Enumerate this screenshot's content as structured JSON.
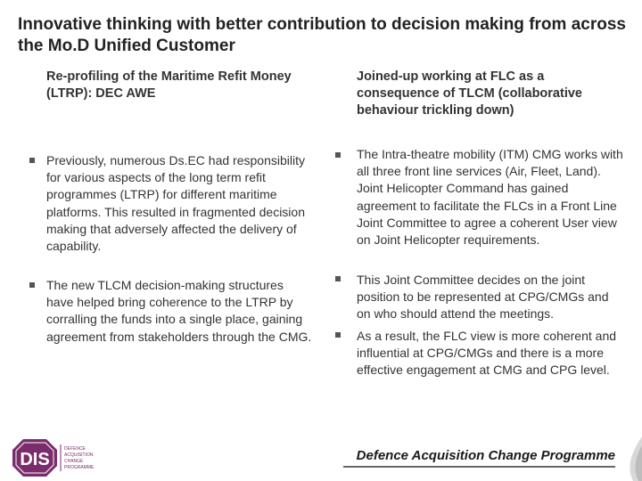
{
  "title": "Innovative thinking with better contribution to decision making from across the Mo.D Unified Customer",
  "left": {
    "heading": "Re-profiling of the Maritime Refit Money (LTRP): DEC AWE",
    "bullets": [
      "Previously, numerous Ds.EC had responsibility for various aspects of the long term refit programmes (LTRP) for different maritime platforms. This resulted in fragmented decision making that adversely affected the delivery of capability.",
      "The new TLCM decision-making structures have helped bring coherence to the LTRP by corralling the funds into a single place, gaining agreement from stakeholders through the CMG."
    ]
  },
  "right": {
    "heading": "Joined-up working at FLC as a consequence of TLCM (collaborative behaviour trickling down)",
    "bullets": [
      "The Intra-theatre mobility (ITM) CMG works with all three front line services (Air, Fleet, Land). Joint Helicopter Command has gained agreement to facilitate the FLCs in a Front Line Joint Committee to agree a coherent User view on Joint Helicopter requirements.",
      "This Joint Committee decides on the joint position to be represented at CPG/CMGs and on who should attend the meetings.",
      "As a result, the FLC view is more coherent and influential at CPG/CMGs and there is a more effective engagement at CMG and CPG level."
    ]
  },
  "footer": {
    "programme": "Defence Acquisition Change Programme"
  },
  "logo": {
    "text": "DIS",
    "tagline": [
      "DEFENCE",
      "ACQUISITION",
      "CHANGE",
      "PROGRAMME"
    ]
  },
  "colors": {
    "logo_purple": "#7b2d6b",
    "text": "#333333"
  }
}
